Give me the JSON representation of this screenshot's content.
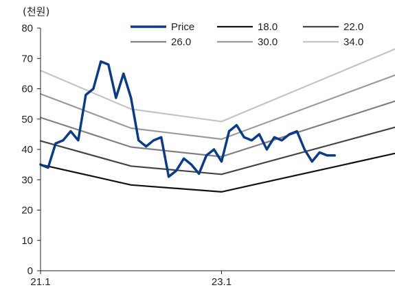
{
  "chart_data": {
    "type": "line",
    "ylabel": "(천원)",
    "xlabel": "",
    "ylim": [
      0,
      80
    ],
    "yticks": [
      0,
      10,
      20,
      30,
      40,
      50,
      60,
      70,
      80
    ],
    "xlim": [
      "2021-01",
      "2024-12"
    ],
    "xticks": [
      "21.1",
      "23.1"
    ],
    "legend_position": "top-right",
    "series": [
      {
        "name": "Price",
        "color": "#0a3a8c",
        "x": [
          "2021-01",
          "2021-02",
          "2021-03",
          "2021-04",
          "2021-05",
          "2021-06",
          "2021-07",
          "2021-08",
          "2021-09",
          "2021-10",
          "2021-11",
          "2021-12",
          "2022-01",
          "2022-02",
          "2022-03",
          "2022-04",
          "2022-05",
          "2022-06",
          "2022-07",
          "2022-08",
          "2022-09",
          "2022-10",
          "2022-11",
          "2022-12",
          "2023-01",
          "2023-02",
          "2023-03",
          "2023-04",
          "2023-05",
          "2023-06",
          "2023-07",
          "2023-08",
          "2023-09",
          "2023-10",
          "2023-11",
          "2023-12",
          "2024-01",
          "2024-02",
          "2024-03",
          "2024-04"
        ],
        "values": [
          35,
          34,
          42,
          43,
          46,
          43,
          58,
          60,
          69,
          68,
          57,
          65,
          57,
          43,
          41,
          43,
          44,
          31,
          33,
          37,
          35,
          32,
          38,
          40,
          36,
          46,
          48,
          44,
          43,
          45,
          40,
          44,
          43,
          45,
          46,
          40,
          36,
          39,
          38,
          38
        ]
      },
      {
        "name": "18.0",
        "color": "#111111",
        "x": [
          "2021-01",
          "2022-01",
          "2023-01",
          "2024-12"
        ],
        "values": [
          35,
          28.3,
          26,
          38.7
        ]
      },
      {
        "name": "22.0",
        "color": "#444444",
        "x": [
          "2021-01",
          "2022-01",
          "2023-01",
          "2024-12"
        ],
        "values": [
          42.8,
          34.5,
          31.8,
          47.3
        ]
      },
      {
        "name": "26.0",
        "color": "#808080",
        "x": [
          "2021-01",
          "2022-01",
          "2023-01",
          "2024-12"
        ],
        "values": [
          50.5,
          40.8,
          37.6,
          55.9
        ]
      },
      {
        "name": "30.0",
        "color": "#9a9a9a",
        "x": [
          "2021-01",
          "2022-01",
          "2023-01",
          "2024-12"
        ],
        "values": [
          58.3,
          47,
          43.4,
          64.5
        ]
      },
      {
        "name": "34.0",
        "color": "#c4c4c4",
        "x": [
          "2021-01",
          "2022-01",
          "2023-01",
          "2024-12"
        ],
        "values": [
          66,
          53.3,
          49.2,
          73.1
        ]
      }
    ]
  }
}
